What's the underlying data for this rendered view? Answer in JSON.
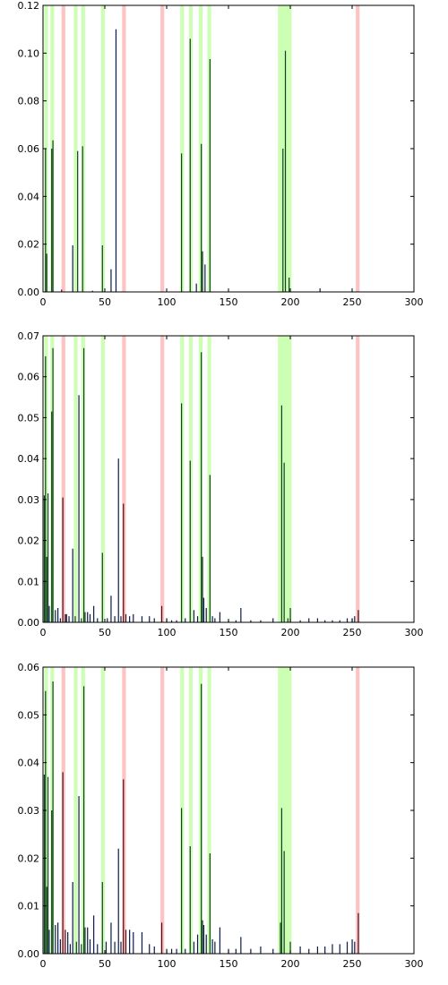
{
  "figure": {
    "highlight_colors": {
      "green": "#ccffb3",
      "red": "#ffc2c2"
    },
    "bar_color": "#0b1b4a",
    "bar_highlight_color": "#10401d",
    "bar_red_color": "#4a0b16",
    "axis_color": "#000000"
  },
  "chart_data": [
    {
      "type": "bar",
      "title": "",
      "xlabel": "",
      "ylabel": "",
      "xlim": [
        0,
        300
      ],
      "ylim": [
        0,
        0.12
      ],
      "xticks": [
        0,
        50,
        100,
        150,
        200,
        250,
        300
      ],
      "yticks": [
        0.0,
        0.02,
        0.04,
        0.06,
        0.08,
        0.1,
        0.12
      ],
      "ytick_labels": [
        "0.00",
        "0.02",
        "0.04",
        "0.06",
        "0.08",
        "0.10",
        "0.12"
      ],
      "grid": false,
      "highlight_bands_green": [
        [
          1,
          4
        ],
        [
          6,
          9
        ],
        [
          25,
          28
        ],
        [
          31,
          34
        ],
        [
          47,
          50
        ],
        [
          111,
          114
        ],
        [
          118,
          121
        ],
        [
          126,
          129
        ],
        [
          133,
          136
        ],
        [
          190,
          201
        ]
      ],
      "highlight_bands_red": [
        [
          15,
          18
        ],
        [
          64,
          67
        ],
        [
          95,
          98
        ],
        [
          253,
          256
        ]
      ],
      "bars": [
        {
          "x": 2,
          "y": 0.06
        },
        {
          "x": 3,
          "y": 0.016
        },
        {
          "x": 7,
          "y": 0.06
        },
        {
          "x": 8,
          "y": 0.0635
        },
        {
          "x": 15,
          "y": 0.001
        },
        {
          "x": 24,
          "y": 0.0195
        },
        {
          "x": 28,
          "y": 0.059
        },
        {
          "x": 32,
          "y": 0.061
        },
        {
          "x": 40,
          "y": 0.0005
        },
        {
          "x": 48,
          "y": 0.0195
        },
        {
          "x": 55,
          "y": 0.0095
        },
        {
          "x": 59,
          "y": 0.11
        },
        {
          "x": 112,
          "y": 0.058
        },
        {
          "x": 119,
          "y": 0.106
        },
        {
          "x": 124,
          "y": 0.0035
        },
        {
          "x": 128,
          "y": 0.062
        },
        {
          "x": 129,
          "y": 0.017
        },
        {
          "x": 131,
          "y": 0.0115
        },
        {
          "x": 135,
          "y": 0.0975
        },
        {
          "x": 194,
          "y": 0.06
        },
        {
          "x": 196,
          "y": 0.101
        },
        {
          "x": 199,
          "y": 0.006
        },
        {
          "x": 224,
          "y": 0.0015
        }
      ]
    },
    {
      "type": "bar",
      "title": "",
      "xlabel": "",
      "ylabel": "",
      "xlim": [
        0,
        300
      ],
      "ylim": [
        0,
        0.07
      ],
      "xticks": [
        0,
        50,
        100,
        150,
        200,
        250,
        300
      ],
      "yticks": [
        0.0,
        0.01,
        0.02,
        0.03,
        0.04,
        0.05,
        0.06,
        0.07
      ],
      "ytick_labels": [
        "0.00",
        "0.01",
        "0.02",
        "0.03",
        "0.04",
        "0.05",
        "0.06",
        "0.07"
      ],
      "grid": false,
      "highlight_bands_green": [
        [
          1,
          4
        ],
        [
          6,
          9
        ],
        [
          25,
          28
        ],
        [
          31,
          34
        ],
        [
          47,
          50
        ],
        [
          111,
          114
        ],
        [
          118,
          121
        ],
        [
          126,
          129
        ],
        [
          133,
          136
        ],
        [
          190,
          201
        ]
      ],
      "highlight_bands_red": [
        [
          15,
          18
        ],
        [
          64,
          67
        ],
        [
          95,
          98
        ],
        [
          253,
          256
        ]
      ],
      "bars": [
        {
          "x": 1,
          "y": 0.031
        },
        {
          "x": 2,
          "y": 0.065
        },
        {
          "x": 3,
          "y": 0.016
        },
        {
          "x": 4,
          "y": 0.0315
        },
        {
          "x": 5,
          "y": 0.004
        },
        {
          "x": 7,
          "y": 0.0515
        },
        {
          "x": 8,
          "y": 0.067
        },
        {
          "x": 10,
          "y": 0.003
        },
        {
          "x": 12,
          "y": 0.0035
        },
        {
          "x": 14,
          "y": 0.001
        },
        {
          "x": 16,
          "y": 0.0305
        },
        {
          "x": 18,
          "y": 0.002
        },
        {
          "x": 19,
          "y": 0.002
        },
        {
          "x": 21,
          "y": 0.0015
        },
        {
          "x": 24,
          "y": 0.018
        },
        {
          "x": 26,
          "y": 0.0015
        },
        {
          "x": 29,
          "y": 0.0555
        },
        {
          "x": 31,
          "y": 0.001
        },
        {
          "x": 33,
          "y": 0.067
        },
        {
          "x": 34,
          "y": 0.0025
        },
        {
          "x": 36,
          "y": 0.0025
        },
        {
          "x": 38,
          "y": 0.002
        },
        {
          "x": 41,
          "y": 0.004
        },
        {
          "x": 44,
          "y": 0.001
        },
        {
          "x": 48,
          "y": 0.017
        },
        {
          "x": 52,
          "y": 0.001
        },
        {
          "x": 55,
          "y": 0.0065
        },
        {
          "x": 58,
          "y": 0.0015
        },
        {
          "x": 61,
          "y": 0.04
        },
        {
          "x": 63,
          "y": 0.0015
        },
        {
          "x": 65,
          "y": 0.029
        },
        {
          "x": 67,
          "y": 0.002
        },
        {
          "x": 70,
          "y": 0.0015
        },
        {
          "x": 73,
          "y": 0.002
        },
        {
          "x": 80,
          "y": 0.0015
        },
        {
          "x": 86,
          "y": 0.0015
        },
        {
          "x": 90,
          "y": 0.001
        },
        {
          "x": 96,
          "y": 0.004
        },
        {
          "x": 100,
          "y": 0.001
        },
        {
          "x": 104,
          "y": 0.0005
        },
        {
          "x": 108,
          "y": 0.0005
        },
        {
          "x": 112,
          "y": 0.0535
        },
        {
          "x": 115,
          "y": 0.001
        },
        {
          "x": 119,
          "y": 0.0395
        },
        {
          "x": 122,
          "y": 0.003
        },
        {
          "x": 125,
          "y": 0.0015
        },
        {
          "x": 128,
          "y": 0.066
        },
        {
          "x": 129,
          "y": 0.016
        },
        {
          "x": 130,
          "y": 0.006
        },
        {
          "x": 132,
          "y": 0.0035
        },
        {
          "x": 135,
          "y": 0.036
        },
        {
          "x": 137,
          "y": 0.0015
        },
        {
          "x": 139,
          "y": 0.001
        },
        {
          "x": 143,
          "y": 0.0025
        },
        {
          "x": 150,
          "y": 0.0005
        },
        {
          "x": 156,
          "y": 0.0005
        },
        {
          "x": 160,
          "y": 0.0035
        },
        {
          "x": 168,
          "y": 0.0005
        },
        {
          "x": 176,
          "y": 0.0005
        },
        {
          "x": 186,
          "y": 0.001
        },
        {
          "x": 193,
          "y": 0.053
        },
        {
          "x": 195,
          "y": 0.039
        },
        {
          "x": 198,
          "y": 0.001
        },
        {
          "x": 200,
          "y": 0.0035
        },
        {
          "x": 208,
          "y": 0.0005
        },
        {
          "x": 215,
          "y": 0.001
        },
        {
          "x": 222,
          "y": 0.001
        },
        {
          "x": 228,
          "y": 0.0005
        },
        {
          "x": 234,
          "y": 0.0005
        },
        {
          "x": 240,
          "y": 0.0005
        },
        {
          "x": 246,
          "y": 0.001
        },
        {
          "x": 250,
          "y": 0.001
        },
        {
          "x": 252,
          "y": 0.0015
        },
        {
          "x": 255,
          "y": 0.003
        }
      ]
    },
    {
      "type": "bar",
      "title": "",
      "xlabel": "",
      "ylabel": "",
      "xlim": [
        0,
        300
      ],
      "ylim": [
        0,
        0.06
      ],
      "xticks": [
        0,
        50,
        100,
        150,
        200,
        250,
        300
      ],
      "yticks": [
        0.0,
        0.01,
        0.02,
        0.03,
        0.04,
        0.05,
        0.06
      ],
      "ytick_labels": [
        "0.00",
        "0.01",
        "0.02",
        "0.03",
        "0.04",
        "0.05",
        "0.06"
      ],
      "grid": false,
      "highlight_bands_green": [
        [
          1,
          4
        ],
        [
          6,
          9
        ],
        [
          25,
          28
        ],
        [
          31,
          34
        ],
        [
          47,
          50
        ],
        [
          111,
          114
        ],
        [
          118,
          121
        ],
        [
          126,
          129
        ],
        [
          133,
          136
        ],
        [
          190,
          201
        ]
      ],
      "highlight_bands_red": [
        [
          15,
          18
        ],
        [
          64,
          67
        ],
        [
          95,
          98
        ],
        [
          253,
          256
        ]
      ],
      "bars": [
        {
          "x": 1,
          "y": 0.0375
        },
        {
          "x": 2,
          "y": 0.055
        },
        {
          "x": 3,
          "y": 0.014
        },
        {
          "x": 4,
          "y": 0.037
        },
        {
          "x": 5,
          "y": 0.005
        },
        {
          "x": 7,
          "y": 0.03
        },
        {
          "x": 8,
          "y": 0.057
        },
        {
          "x": 10,
          "y": 0.006
        },
        {
          "x": 12,
          "y": 0.0065
        },
        {
          "x": 14,
          "y": 0.003
        },
        {
          "x": 16,
          "y": 0.038
        },
        {
          "x": 18,
          "y": 0.005
        },
        {
          "x": 20,
          "y": 0.0045
        },
        {
          "x": 22,
          "y": 0.002
        },
        {
          "x": 24,
          "y": 0.015
        },
        {
          "x": 27,
          "y": 0.0025
        },
        {
          "x": 29,
          "y": 0.033
        },
        {
          "x": 31,
          "y": 0.002
        },
        {
          "x": 33,
          "y": 0.056
        },
        {
          "x": 34,
          "y": 0.0055
        },
        {
          "x": 36,
          "y": 0.0055
        },
        {
          "x": 38,
          "y": 0.003
        },
        {
          "x": 41,
          "y": 0.008
        },
        {
          "x": 44,
          "y": 0.002
        },
        {
          "x": 48,
          "y": 0.015
        },
        {
          "x": 51,
          "y": 0.0025
        },
        {
          "x": 55,
          "y": 0.0065
        },
        {
          "x": 58,
          "y": 0.0025
        },
        {
          "x": 61,
          "y": 0.022
        },
        {
          "x": 63,
          "y": 0.0025
        },
        {
          "x": 65,
          "y": 0.0365
        },
        {
          "x": 67,
          "y": 0.005
        },
        {
          "x": 70,
          "y": 0.005
        },
        {
          "x": 73,
          "y": 0.0045
        },
        {
          "x": 80,
          "y": 0.0045
        },
        {
          "x": 86,
          "y": 0.002
        },
        {
          "x": 90,
          "y": 0.0015
        },
        {
          "x": 96,
          "y": 0.0065
        },
        {
          "x": 100,
          "y": 0.001
        },
        {
          "x": 104,
          "y": 0.001
        },
        {
          "x": 108,
          "y": 0.001
        },
        {
          "x": 112,
          "y": 0.0305
        },
        {
          "x": 115,
          "y": 0.001
        },
        {
          "x": 119,
          "y": 0.0225
        },
        {
          "x": 122,
          "y": 0.0025
        },
        {
          "x": 125,
          "y": 0.004
        },
        {
          "x": 128,
          "y": 0.0565
        },
        {
          "x": 129,
          "y": 0.007
        },
        {
          "x": 130,
          "y": 0.006
        },
        {
          "x": 132,
          "y": 0.004
        },
        {
          "x": 135,
          "y": 0.021
        },
        {
          "x": 137,
          "y": 0.003
        },
        {
          "x": 139,
          "y": 0.0025
        },
        {
          "x": 143,
          "y": 0.0055
        },
        {
          "x": 150,
          "y": 0.001
        },
        {
          "x": 156,
          "y": 0.001
        },
        {
          "x": 160,
          "y": 0.0035
        },
        {
          "x": 168,
          "y": 0.001
        },
        {
          "x": 176,
          "y": 0.0015
        },
        {
          "x": 186,
          "y": 0.001
        },
        {
          "x": 192,
          "y": 0.0065
        },
        {
          "x": 193,
          "y": 0.0305
        },
        {
          "x": 195,
          "y": 0.0215
        },
        {
          "x": 200,
          "y": 0.0025
        },
        {
          "x": 208,
          "y": 0.0015
        },
        {
          "x": 215,
          "y": 0.001
        },
        {
          "x": 222,
          "y": 0.0015
        },
        {
          "x": 228,
          "y": 0.0015
        },
        {
          "x": 234,
          "y": 0.002
        },
        {
          "x": 240,
          "y": 0.002
        },
        {
          "x": 246,
          "y": 0.0025
        },
        {
          "x": 250,
          "y": 0.003
        },
        {
          "x": 252,
          "y": 0.0025
        },
        {
          "x": 255,
          "y": 0.0085
        }
      ]
    }
  ]
}
